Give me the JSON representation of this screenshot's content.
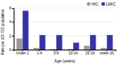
{
  "chart_data": {
    "type": "bar",
    "categories": [
      "Under 1",
      "1-4",
      "5-9",
      "10-14",
      "15-19",
      "under 20"
    ],
    "series": [
      {
        "name": "HIC",
        "color": "#999999",
        "values": [
          1.6,
          0.25,
          0.1,
          0.1,
          0.55,
          0.25
        ]
      },
      {
        "name": "LMIC",
        "color": "#3333aa",
        "values": [
          5.6,
          2.1,
          2.1,
          1.0,
          2.1,
          2.1
        ]
      }
    ],
    "xlabel": "Age (years)",
    "ylabel": "Rate per 100 000 population",
    "ylim": [
      0,
      6
    ],
    "yticks": [
      0,
      2,
      4,
      6
    ],
    "grid": true,
    "legend": "upper right"
  }
}
